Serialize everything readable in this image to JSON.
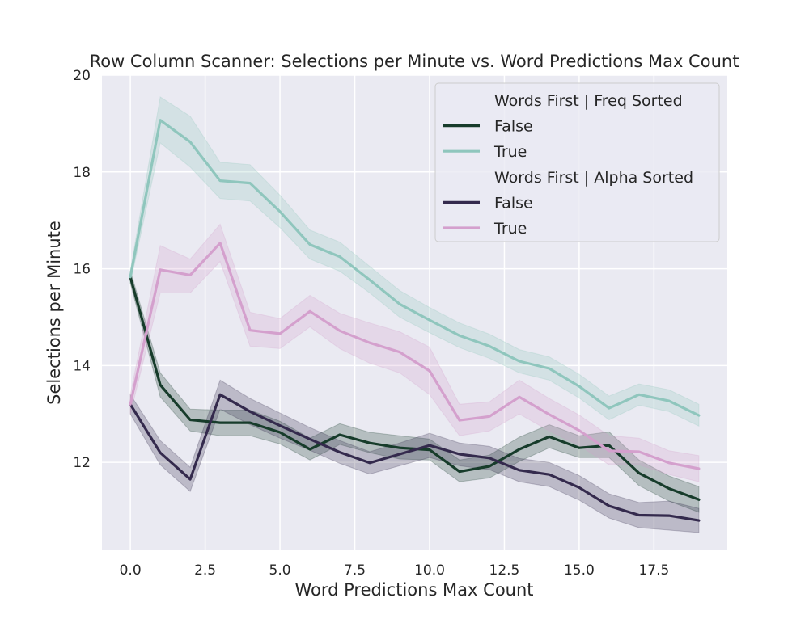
{
  "chart_data": {
    "type": "line",
    "title": "Row Column Scanner: Selections per Minute vs. Word Predictions Max Count",
    "xlabel": "Word Predictions Max Count",
    "ylabel": "Selections per Minute",
    "xlim": [
      -0.95,
      19.95
    ],
    "ylim": [
      10.2,
      20.0
    ],
    "xticks": [
      0.0,
      2.5,
      5.0,
      7.5,
      10.0,
      12.5,
      15.0,
      17.5
    ],
    "xtick_labels": [
      "0.0",
      "2.5",
      "5.0",
      "7.5",
      "10.0",
      "12.5",
      "15.0",
      "17.5"
    ],
    "yticks": [
      12,
      14,
      16,
      18,
      20
    ],
    "ytick_labels": [
      "12",
      "14",
      "16",
      "18",
      "20"
    ],
    "grid": true,
    "legend_position": "top-right",
    "x": [
      0,
      1,
      2,
      3,
      4,
      5,
      6,
      7,
      8,
      9,
      10,
      11,
      12,
      13,
      14,
      15,
      16,
      17,
      18,
      19
    ],
    "legend_groups": [
      {
        "title": "Words First | Freq Sorted",
        "series": [
          {
            "name": "False",
            "color": "#173c2b",
            "values": [
              15.83,
              13.6,
              12.88,
              12.82,
              12.82,
              12.62,
              12.27,
              12.57,
              12.4,
              12.3,
              12.26,
              11.81,
              11.92,
              12.27,
              12.53,
              12.3,
              12.35,
              11.78,
              11.46,
              11.23
            ],
            "lower": [
              15.7,
              13.35,
              12.65,
              12.55,
              12.55,
              12.38,
              12.05,
              12.37,
              12.2,
              12.07,
              12.05,
              11.6,
              11.68,
              12.02,
              12.3,
              12.1,
              12.1,
              11.52,
              11.2,
              10.97
            ],
            "upper": [
              15.96,
              13.85,
              13.1,
              13.08,
              13.08,
              12.85,
              12.5,
              12.8,
              12.62,
              12.55,
              12.48,
              12.05,
              12.15,
              12.52,
              12.78,
              12.55,
              12.63,
              12.05,
              11.72,
              11.5
            ]
          },
          {
            "name": "True",
            "color": "#8fc6bd",
            "values": [
              15.83,
              19.07,
              18.62,
              17.82,
              17.77,
              17.18,
              16.5,
              16.25,
              15.77,
              15.27,
              14.94,
              14.62,
              14.4,
              14.09,
              13.94,
              13.57,
              13.12,
              13.4,
              13.27,
              12.97
            ],
            "lower": [
              15.7,
              18.6,
              18.1,
              17.45,
              17.4,
              16.85,
              16.2,
              15.95,
              15.5,
              15.0,
              14.68,
              14.37,
              14.15,
              13.85,
              13.7,
              13.33,
              12.88,
              13.18,
              13.05,
              12.75
            ],
            "upper": [
              15.96,
              19.55,
              19.15,
              18.2,
              18.15,
              17.52,
              16.8,
              16.55,
              16.05,
              15.55,
              15.2,
              14.88,
              14.65,
              14.33,
              14.18,
              13.82,
              13.37,
              13.62,
              13.5,
              13.2
            ]
          }
        ]
      },
      {
        "title": "Words First | Alpha Sorted",
        "series": [
          {
            "name": "False",
            "color": "#342a4d",
            "values": [
              13.2,
              12.2,
              11.65,
              13.4,
              13.05,
              12.76,
              12.48,
              12.21,
              11.99,
              12.17,
              12.35,
              12.17,
              12.09,
              11.84,
              11.75,
              11.48,
              11.1,
              10.91,
              10.9,
              10.8
            ],
            "lower": [
              13.0,
              11.95,
              11.4,
              13.1,
              12.78,
              12.5,
              12.25,
              11.98,
              11.76,
              11.93,
              12.1,
              11.93,
              11.85,
              11.6,
              11.5,
              11.22,
              10.85,
              10.65,
              10.6,
              10.55
            ],
            "upper": [
              13.4,
              12.45,
              11.9,
              13.7,
              13.32,
              13.02,
              12.72,
              12.45,
              12.22,
              12.4,
              12.6,
              12.4,
              12.33,
              12.08,
              12.0,
              11.73,
              11.35,
              11.17,
              11.2,
              11.05
            ]
          },
          {
            "name": "True",
            "color": "#d4a0cd",
            "values": [
              13.2,
              15.98,
              15.87,
              16.53,
              14.73,
              14.66,
              15.12,
              14.72,
              14.47,
              14.28,
              13.89,
              12.87,
              12.95,
              13.35,
              12.99,
              12.66,
              12.24,
              12.22,
              11.99,
              11.87
            ],
            "lower": [
              13.0,
              15.5,
              15.5,
              16.15,
              14.4,
              14.35,
              14.8,
              14.35,
              14.05,
              13.85,
              13.4,
              12.55,
              12.65,
              13.0,
              12.65,
              12.35,
              11.95,
              11.95,
              11.75,
              11.6
            ],
            "upper": [
              13.4,
              16.48,
              16.2,
              16.92,
              15.1,
              14.97,
              15.45,
              15.08,
              14.88,
              14.7,
              14.38,
              13.2,
              13.25,
              13.7,
              13.32,
              12.98,
              12.55,
              12.5,
              12.24,
              12.14
            ]
          }
        ]
      }
    ]
  }
}
